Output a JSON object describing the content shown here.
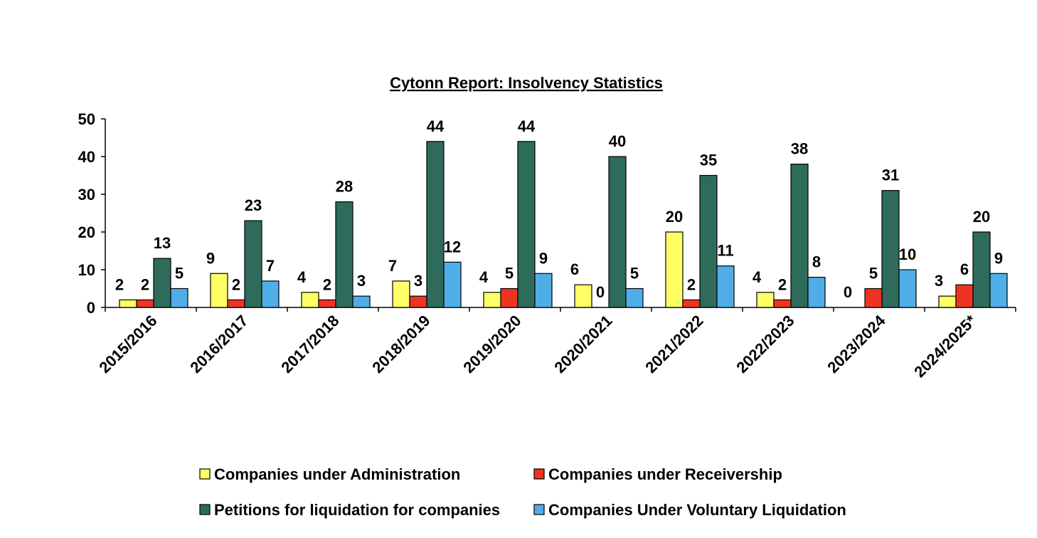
{
  "chart_data": {
    "type": "bar",
    "title": "Cytonn Report: Insolvency Statistics",
    "xlabel": "",
    "ylabel": "",
    "ylim": [
      0,
      50
    ],
    "yticks": [
      0,
      10,
      20,
      30,
      40,
      50
    ],
    "grid": false,
    "legend_position": "bottom",
    "categories": [
      "2015/2016",
      "2016/2017",
      "2017/2018",
      "2018/2019",
      "2019/2020",
      "2020/2021",
      "2021/2022",
      "2022/2023",
      "2023/2024",
      "2024/2025*"
    ],
    "series": [
      {
        "name": "Companies under Administration",
        "color": "#FFFF66",
        "values": [
          2,
          9,
          4,
          7,
          4,
          6,
          20,
          4,
          0,
          3
        ]
      },
      {
        "name": "Companies under Receivership",
        "color": "#EE3322",
        "values": [
          2,
          2,
          2,
          3,
          5,
          0,
          2,
          2,
          5,
          6
        ]
      },
      {
        "name": "Petitions for liquidation for companies",
        "color": "#2E6B5B",
        "values": [
          13,
          23,
          28,
          44,
          44,
          40,
          35,
          38,
          31,
          20
        ]
      },
      {
        "name": "Companies Under Voluntary Liquidation",
        "color": "#4FAEE8",
        "values": [
          5,
          7,
          3,
          12,
          9,
          5,
          11,
          8,
          10,
          9
        ]
      }
    ]
  }
}
